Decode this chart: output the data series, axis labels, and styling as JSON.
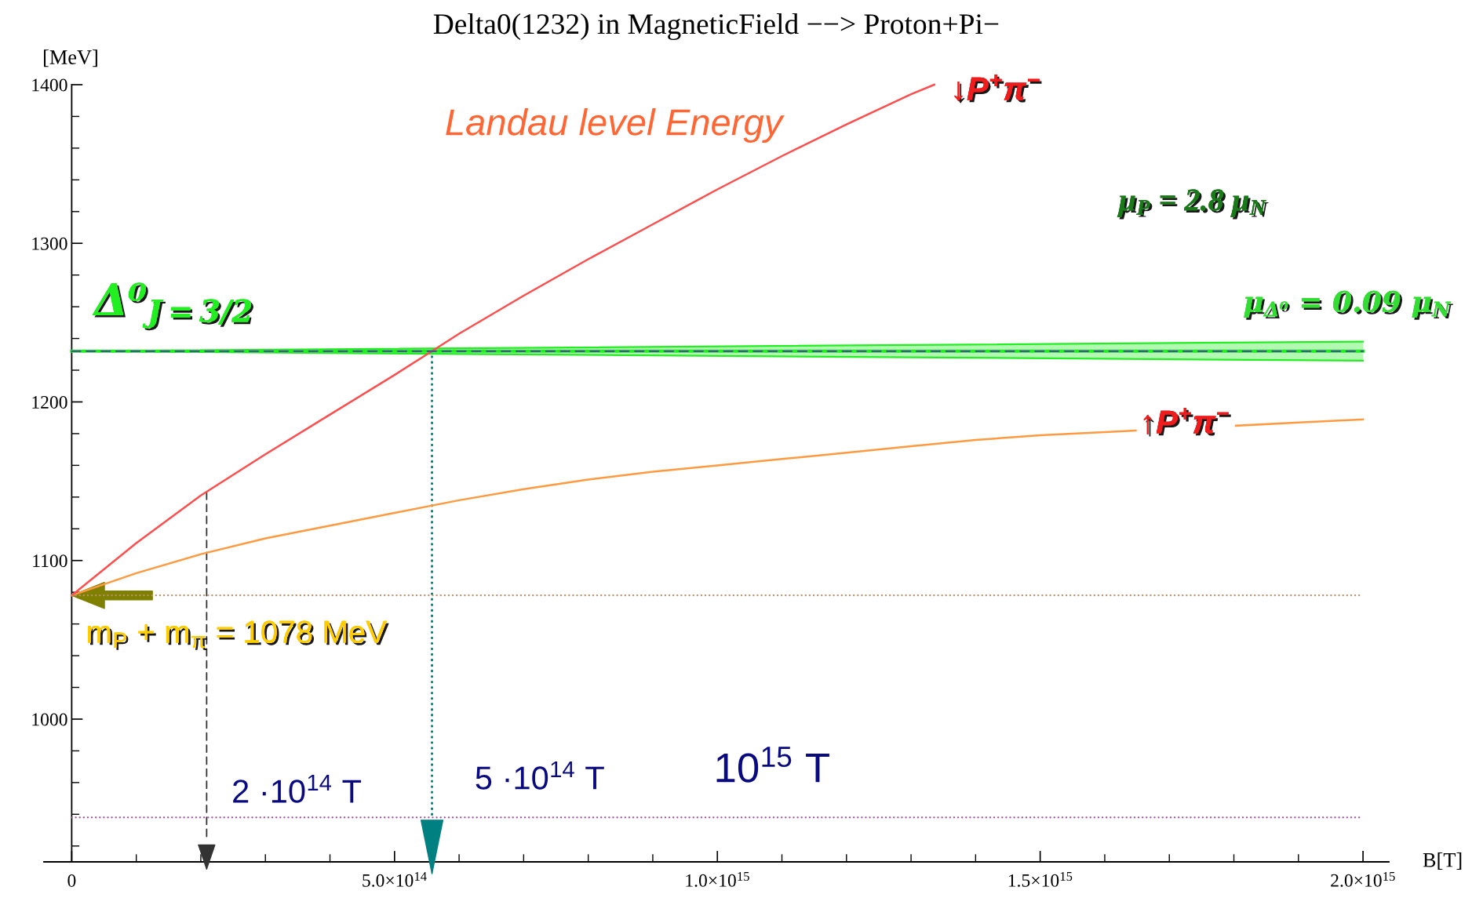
{
  "chart_data": {
    "type": "line",
    "title": "Delta0(1232) in MagneticField −−> Proton+Pi−",
    "xlabel": "B[T]",
    "ylabel": "[MeV]",
    "xlim": [
      -43000000000000.0,
      2040000000000000.0
    ],
    "ylim": [
      910,
      1400
    ],
    "xticks": [
      0,
      {
        "value": 100000000000000.0,
        "label": null
      },
      {
        "value": 200000000000000.0,
        "label": null
      },
      {
        "value": 300000000000000.0,
        "label": null
      },
      {
        "value": 400000000000000.0,
        "label": null
      },
      {
        "value": 500000000000000.0,
        "label": "5.0×10$^{14}$"
      },
      {
        "value": 600000000000000.0,
        "label": null
      },
      {
        "value": 700000000000000.0,
        "label": null
      },
      {
        "value": 800000000000000.0,
        "label": null
      },
      {
        "value": 900000000000000.0,
        "label": null
      },
      {
        "value": 1000000000000000.0,
        "label": "1.0×10$^{15}$"
      },
      {
        "value": 1100000000000000.0,
        "label": null
      },
      {
        "value": 1200000000000000.0,
        "label": null
      },
      {
        "value": 1300000000000000.0,
        "label": null
      },
      {
        "value": 1400000000000000.0,
        "label": null
      },
      {
        "value": 1500000000000000.0,
        "label": "1.5×10$^{15}$"
      },
      {
        "value": 1600000000000000.0,
        "label": null
      },
      {
        "value": 1700000000000000.0,
        "label": null
      },
      {
        "value": 1800000000000000.0,
        "label": null
      },
      {
        "value": 1900000000000000.0,
        "label": null
      },
      {
        "value": 2000000000000000.0,
        "label": "2.0×10$^{15}$"
      }
    ],
    "yticks": [
      {
        "value": 920,
        "label": null
      },
      {
        "value": 940,
        "label": null
      },
      {
        "value": 960,
        "label": null
      },
      {
        "value": 980,
        "label": null
      },
      1000,
      {
        "value": 1020,
        "label": null
      },
      {
        "value": 1040,
        "label": null
      },
      {
        "value": 1060,
        "label": null
      },
      {
        "value": 1080,
        "label": null
      },
      1100,
      {
        "value": 1120,
        "label": null
      },
      {
        "value": 1140,
        "label": null
      },
      {
        "value": 1160,
        "label": null
      },
      {
        "value": 1180,
        "label": null
      },
      1200,
      {
        "value": 1220,
        "label": null
      },
      {
        "value": 1240,
        "label": null
      },
      {
        "value": 1260,
        "label": null
      },
      {
        "value": 1280,
        "label": null
      },
      1300,
      {
        "value": 1320,
        "label": null
      },
      {
        "value": 1340,
        "label": null
      },
      {
        "value": 1360,
        "label": null
      },
      {
        "value": 1380,
        "label": null
      },
      1400
    ],
    "series": [
      {
        "color": "#ff4d4d",
        "x": [
          0,
          100000000000000.0,
          200000000000000.0,
          300000000000000.0,
          400000000000000.0,
          500000000000000.0,
          558000000000000.0,
          600000000000000.0,
          700000000000000.0,
          800000000000000.0,
          900000000000000.0,
          1000000000000000.0,
          1100000000000000.0,
          1200000000000000.0,
          1300000000000000.0,
          1336000000000000.0
        ],
        "values": [
          1078,
          1111,
          1141,
          1167,
          1192,
          1217,
          1232,
          1243,
          1267,
          1290,
          1312,
          1334,
          1355,
          1375,
          1394,
          1400
        ]
      },
      {
        "color": "#ff9a40",
        "x": [
          0,
          100000000000000.0,
          200000000000000.0,
          300000000000000.0,
          400000000000000.0,
          500000000000000.0,
          600000000000000.0,
          700000000000000.0,
          800000000000000.0,
          900000000000000.0,
          1000000000000000.0,
          1100000000000000.0,
          1200000000000000.0,
          1300000000000000.0,
          1400000000000000.0,
          1500000000000000.0,
          1600000000000000.0,
          1648000000000000.0,
          1720000000000000.0,
          1803000000000000.0,
          1900000000000000.0,
          2000000000000000.0
        ],
        "values": [
          1078,
          1092,
          1104,
          1114,
          1122,
          1130,
          1138,
          1145,
          1151,
          1156,
          1160,
          1164,
          1168,
          1172,
          1176,
          1179,
          1181,
          1182,
          null,
          1185,
          1187,
          1189
        ]
      },
      {
        "color": "#22ee22",
        "x": [
          0,
          2000000000000000.0
        ],
        "values": [
          1232,
          1232
        ],
        "lower": [
          1232,
          1226
        ],
        "upper": [
          1232,
          1238
        ]
      },
      {
        "color": "#008080",
        "x": [
          558000000000000.0,
          558000000000000.0
        ],
        "values": [
          1232,
          938
        ],
        "line_style": "dotted"
      },
      {
        "color": "#333333",
        "x": [
          209000000000000.0,
          209000000000000.0
        ],
        "values": [
          1143,
          923
        ],
        "line_style": "dashed"
      }
    ],
    "ref_lines": [
      {
        "axis": "y",
        "value": 1078,
        "label": "m$_{P}$ + m$_{π}$ = 1078 MeV",
        "color": "#b8926a",
        "line_style": "dotted"
      },
      {
        "axis": "y",
        "value": 938,
        "color": "#a050a0",
        "line_style": "dotted"
      },
      {
        "axis": "y",
        "value": 1232,
        "color": "#5050a0",
        "line_style": "dashed"
      }
    ],
    "annotations": [
      "Landau level Energy",
      "↓P$^{+}$π$^{−}$",
      "↑P$^{+}$π$^{−}$",
      "μ$_{P}$ = 2.8 μ$_{N}$",
      "μ$_{Δ⁰}$ = 0.09 μ$_{N}$",
      "Δ⁰$_{J=3/2}$",
      "2 ·10$^{14}$ T",
      "5 ·10$^{14}$ T",
      "10$^{15}$ T"
    ]
  }
}
